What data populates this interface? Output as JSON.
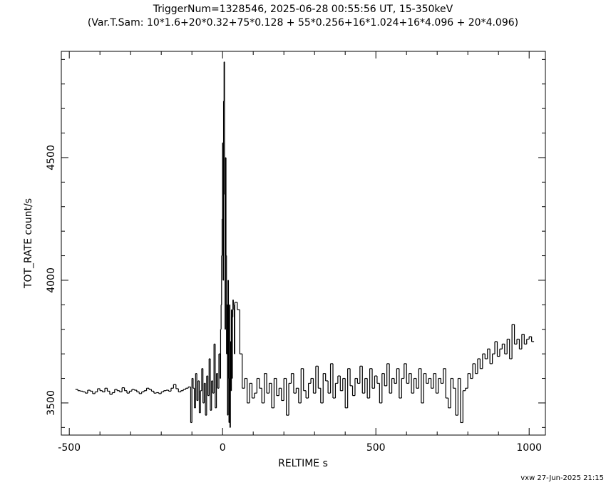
{
  "chart_data": {
    "type": "step",
    "title": "TriggerNum=1328546, 2025-06-28 00:55:56 UT, 15-350keV",
    "subtitle": "(Var.T.Sam: 10*1.6+20*0.32+75*0.128  +  55*0.256+16*1.024+16*4.096  +  20*4.096)",
    "xlabel": "RELTIME  s",
    "ylabel": "TOT_RATE  count/s",
    "footer": "vxw 27-Jun-2025 21:15",
    "color": "#000000",
    "xlim": [
      -526,
      1053
    ],
    "ylim": [
      3369,
      4933
    ],
    "xticks": [
      -500,
      0,
      500,
      1000
    ],
    "yticks": [
      3500,
      4000,
      4500
    ],
    "xminorticks": [
      -400,
      -300,
      -200,
      -100,
      100,
      200,
      300,
      400,
      600,
      700,
      800,
      900
    ],
    "yminorticks": [
      3400,
      3600,
      3700,
      3800,
      3900,
      4100,
      4200,
      4300,
      4400,
      4600,
      4700,
      4800,
      4900
    ],
    "x": [
      -480,
      -472,
      -464,
      -456,
      -448,
      -440,
      -432,
      -424,
      -416,
      -408,
      -400,
      -392,
      -384,
      -376,
      -368,
      -360,
      -352,
      -344,
      -336,
      -328,
      -320,
      -312,
      -304,
      -296,
      -288,
      -280,
      -272,
      -264,
      -256,
      -248,
      -240,
      -232,
      -224,
      -216,
      -208,
      -200,
      -192,
      -184,
      -176,
      -168,
      -160,
      -152,
      -144,
      -136,
      -128,
      -120,
      -112,
      -104,
      -100,
      -96,
      -92,
      -88,
      -84,
      -80,
      -76,
      -72,
      -68,
      -64,
      -60,
      -56,
      -52,
      -48,
      -44,
      -40,
      -36,
      -32,
      -28,
      -24,
      -20,
      -16,
      -12,
      -8,
      -6.4,
      -4.8,
      -3.2,
      -1.6,
      0,
      1.6,
      3.2,
      4.8,
      6.4,
      8,
      9.6,
      11.2,
      12.8,
      14.4,
      16,
      17.6,
      19.2,
      20.8,
      22.4,
      24,
      25.6,
      27.2,
      28.8,
      30.4,
      32,
      33.6,
      35.2,
      36.8,
      38.4,
      40,
      48,
      56,
      64,
      72,
      80,
      88,
      96,
      104,
      112,
      120,
      128,
      136,
      144,
      152,
      160,
      168,
      176,
      184,
      192,
      200,
      208,
      216,
      224,
      232,
      240,
      248,
      256,
      264,
      272,
      280,
      288,
      296,
      304,
      312,
      320,
      328,
      336,
      344,
      352,
      360,
      368,
      376,
      384,
      392,
      400,
      408,
      416,
      424,
      432,
      440,
      448,
      456,
      464,
      472,
      480,
      488,
      496,
      504,
      512,
      520,
      528,
      536,
      544,
      552,
      560,
      568,
      576,
      584,
      592,
      600,
      608,
      616,
      624,
      632,
      640,
      648,
      656,
      664,
      672,
      680,
      688,
      696,
      704,
      712,
      720,
      728,
      736,
      744,
      752,
      760,
      768,
      776,
      784,
      792,
      800,
      808,
      816,
      824,
      832,
      840,
      848,
      856,
      864,
      872,
      880,
      888,
      896,
      904,
      912,
      920,
      928,
      936,
      944,
      952,
      960,
      968,
      976,
      984,
      992,
      1000,
      1008
    ],
    "values": [
      3555,
      3550,
      3548,
      3545,
      3540,
      3552,
      3548,
      3538,
      3545,
      3558,
      3550,
      3545,
      3560,
      3548,
      3535,
      3542,
      3555,
      3550,
      3545,
      3562,
      3550,
      3540,
      3548,
      3555,
      3552,
      3545,
      3538,
      3545,
      3550,
      3560,
      3555,
      3548,
      3540,
      3542,
      3538,
      3545,
      3550,
      3552,
      3548,
      3560,
      3575,
      3558,
      3545,
      3550,
      3555,
      3560,
      3565,
      3420,
      3600,
      3560,
      3480,
      3620,
      3510,
      3590,
      3460,
      3550,
      3640,
      3500,
      3580,
      3450,
      3610,
      3530,
      3680,
      3470,
      3590,
      3540,
      3740,
      3480,
      3620,
      3560,
      3700,
      3600,
      3800,
      3900,
      4100,
      4250,
      4560,
      4000,
      4730,
      4890,
      4350,
      3800,
      4500,
      4100,
      3700,
      3900,
      3450,
      4000,
      3600,
      3420,
      3900,
      3400,
      3750,
      3550,
      3880,
      3600,
      3850,
      3920,
      3900,
      3880,
      3700,
      3910,
      3880,
      3700,
      3560,
      3600,
      3500,
      3580,
      3520,
      3540,
      3600,
      3560,
      3500,
      3620,
      3540,
      3580,
      3480,
      3600,
      3530,
      3560,
      3510,
      3600,
      3450,
      3580,
      3620,
      3540,
      3560,
      3500,
      3640,
      3550,
      3520,
      3580,
      3600,
      3540,
      3650,
      3560,
      3500,
      3620,
      3590,
      3540,
      3660,
      3520,
      3580,
      3610,
      3550,
      3600,
      3480,
      3640,
      3570,
      3530,
      3600,
      3580,
      3650,
      3540,
      3600,
      3520,
      3640,
      3560,
      3610,
      3580,
      3500,
      3620,
      3570,
      3660,
      3540,
      3600,
      3580,
      3640,
      3520,
      3600,
      3660,
      3580,
      3620,
      3540,
      3600,
      3560,
      3640,
      3500,
      3620,
      3580,
      3600,
      3560,
      3620,
      3540,
      3600,
      3580,
      3640,
      3520,
      3480,
      3600,
      3560,
      3450,
      3600,
      3420,
      3550,
      3560,
      3620,
      3600,
      3660,
      3620,
      3680,
      3640,
      3700,
      3680,
      3720,
      3660,
      3700,
      3750,
      3690,
      3720,
      3740,
      3700,
      3760,
      3680,
      3820,
      3740,
      3760,
      3720,
      3780,
      3740,
      3760,
      3770,
      3750
    ]
  }
}
